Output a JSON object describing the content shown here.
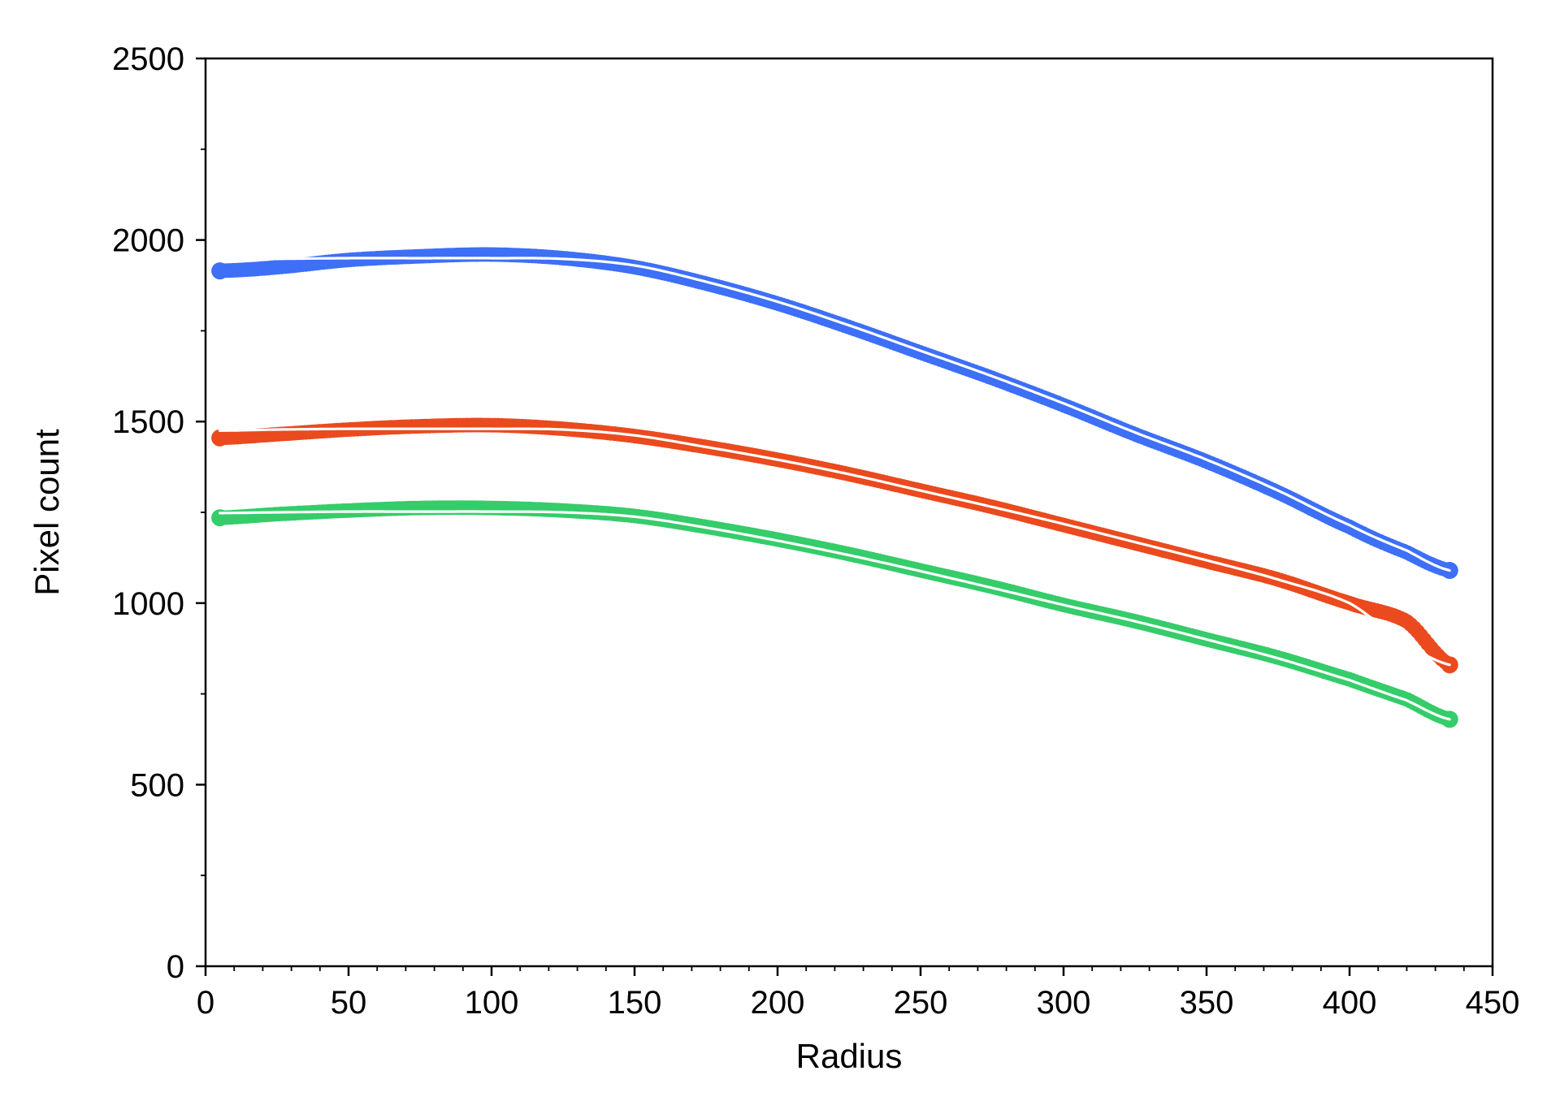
{
  "chart_data": {
    "type": "scatter",
    "title": "",
    "xlabel": "Radius",
    "ylabel": "Pixel count",
    "xlim": [
      0,
      450
    ],
    "ylim": [
      0,
      2500
    ],
    "x_ticks": [
      0,
      50,
      100,
      150,
      200,
      250,
      300,
      350,
      400,
      450
    ],
    "y_ticks": [
      0,
      500,
      1000,
      1500,
      2000,
      2500
    ],
    "grid": false,
    "legend": "none",
    "fit_line_color": "#ffffff",
    "series": [
      {
        "color": "#3d6ff7",
        "x": [
          5,
          25,
          50,
          75,
          100,
          125,
          150,
          175,
          200,
          225,
          250,
          275,
          300,
          325,
          350,
          375,
          400,
          420,
          435
        ],
        "points": [
          1915,
          1925,
          1945,
          1955,
          1960,
          1950,
          1925,
          1880,
          1825,
          1760,
          1690,
          1620,
          1545,
          1465,
          1390,
          1305,
          1210,
          1140,
          1090
        ],
        "fit": [
          1945,
          1948,
          1950,
          1950,
          1950,
          1948,
          1930,
          1885,
          1830,
          1765,
          1695,
          1625,
          1550,
          1470,
          1395,
          1310,
          1215,
          1145,
          1090
        ]
      },
      {
        "color": "#ea4a1e",
        "x": [
          5,
          25,
          50,
          75,
          100,
          125,
          150,
          175,
          200,
          225,
          250,
          275,
          300,
          325,
          350,
          375,
          400,
          420,
          435
        ],
        "points": [
          1455,
          1465,
          1478,
          1487,
          1490,
          1480,
          1460,
          1430,
          1395,
          1355,
          1310,
          1265,
          1215,
          1165,
          1115,
          1065,
          1000,
          950,
          830
        ],
        "fit": [
          1475,
          1478,
          1480,
          1480,
          1480,
          1478,
          1462,
          1430,
          1395,
          1355,
          1310,
          1265,
          1218,
          1168,
          1118,
          1065,
          1000,
          890,
          830
        ]
      },
      {
        "color": "#35cc6a",
        "x": [
          5,
          25,
          50,
          75,
          100,
          125,
          150,
          175,
          200,
          225,
          250,
          275,
          300,
          325,
          350,
          375,
          400,
          420,
          435
        ],
        "points": [
          1235,
          1245,
          1255,
          1262,
          1262,
          1255,
          1240,
          1210,
          1175,
          1135,
          1090,
          1045,
          995,
          950,
          900,
          850,
          790,
          735,
          680
        ],
        "fit": [
          1248,
          1250,
          1252,
          1252,
          1252,
          1250,
          1238,
          1208,
          1172,
          1132,
          1088,
          1042,
          995,
          950,
          900,
          848,
          788,
          732,
          680
        ]
      }
    ]
  }
}
